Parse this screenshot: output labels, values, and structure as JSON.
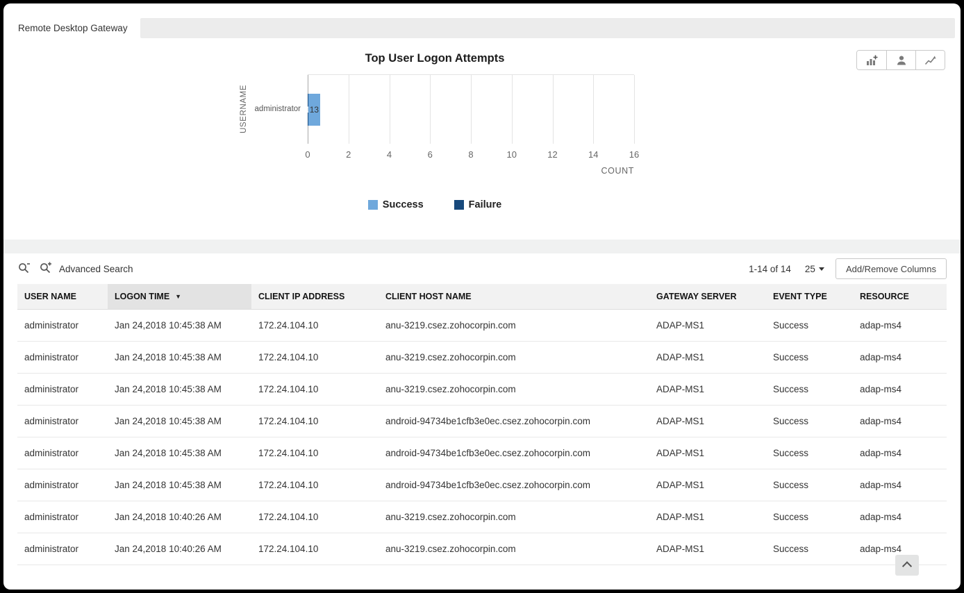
{
  "window": {
    "tab_label": "Remote Desktop Gateway"
  },
  "chart_toolbar": {
    "icons": [
      "add-chart-icon",
      "user-report-icon",
      "export-report-icon"
    ]
  },
  "chart_data": {
    "type": "bar",
    "orientation": "horizontal",
    "stacked": true,
    "title": "Top User Logon Attempts",
    "xlabel": "COUNT",
    "ylabel": "USERNAME",
    "categories": [
      "administrator"
    ],
    "series": [
      {
        "name": "Failure",
        "values": [
          1
        ],
        "color": "#17497c",
        "label_color": "#ffffff"
      },
      {
        "name": "Success",
        "values": [
          13
        ],
        "color": "#6fa8dc",
        "label_color": "#333333"
      }
    ],
    "xlim": [
      0,
      16
    ],
    "x_ticks": [
      0,
      2,
      4,
      6,
      8,
      10,
      12,
      14,
      16
    ],
    "grid": true,
    "legend_position": "bottom",
    "legend": [
      {
        "name": "Success",
        "color": "#6fa8dc"
      },
      {
        "name": "Failure",
        "color": "#17497c"
      }
    ]
  },
  "search": {
    "advanced_label": "Advanced Search"
  },
  "pagination": {
    "range": "1-14 of 14",
    "page_size": "25"
  },
  "buttons": {
    "add_remove_columns": "Add/Remove Columns"
  },
  "table": {
    "headers": [
      "USER NAME",
      "LOGON TIME",
      "CLIENT IP ADDRESS",
      "CLIENT HOST NAME",
      "GATEWAY SERVER",
      "EVENT TYPE",
      "RESOURCE"
    ],
    "sorted_column": "LOGON TIME",
    "sort_direction": "desc",
    "sort_arrow": "▼",
    "rows": [
      [
        "administrator",
        "Jan 24,2018 10:45:38 AM",
        "172.24.104.10",
        "anu-3219.csez.zohocorpin.com",
        "ADAP-MS1",
        "Success",
        "adap-ms4"
      ],
      [
        "administrator",
        "Jan 24,2018 10:45:38 AM",
        "172.24.104.10",
        "anu-3219.csez.zohocorpin.com",
        "ADAP-MS1",
        "Success",
        "adap-ms4"
      ],
      [
        "administrator",
        "Jan 24,2018 10:45:38 AM",
        "172.24.104.10",
        "anu-3219.csez.zohocorpin.com",
        "ADAP-MS1",
        "Success",
        "adap-ms4"
      ],
      [
        "administrator",
        "Jan 24,2018 10:45:38 AM",
        "172.24.104.10",
        "android-94734be1cfb3e0ec.csez.zohocorpin.com",
        "ADAP-MS1",
        "Success",
        "adap-ms4"
      ],
      [
        "administrator",
        "Jan 24,2018 10:45:38 AM",
        "172.24.104.10",
        "android-94734be1cfb3e0ec.csez.zohocorpin.com",
        "ADAP-MS1",
        "Success",
        "adap-ms4"
      ],
      [
        "administrator",
        "Jan 24,2018 10:45:38 AM",
        "172.24.104.10",
        "android-94734be1cfb3e0ec.csez.zohocorpin.com",
        "ADAP-MS1",
        "Success",
        "adap-ms4"
      ],
      [
        "administrator",
        "Jan 24,2018 10:40:26 AM",
        "172.24.104.10",
        "anu-3219.csez.zohocorpin.com",
        "ADAP-MS1",
        "Success",
        "adap-ms4"
      ],
      [
        "administrator",
        "Jan 24,2018 10:40:26 AM",
        "172.24.104.10",
        "anu-3219.csez.zohocorpin.com",
        "ADAP-MS1",
        "Success",
        "adap-ms4"
      ]
    ]
  }
}
